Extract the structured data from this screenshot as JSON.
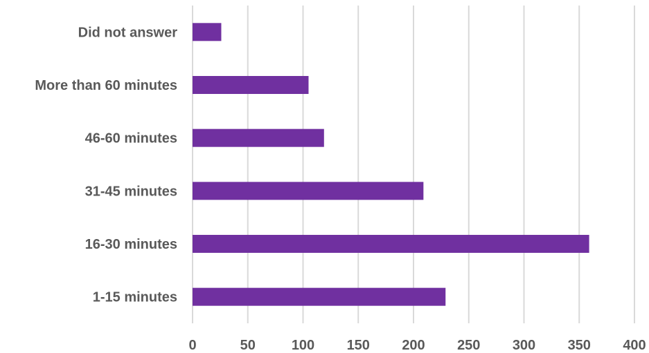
{
  "chart_data": {
    "type": "bar",
    "orientation": "horizontal",
    "categories": [
      "Did not answer",
      "More than 60 minutes",
      "46-60 minutes",
      "31-45 minutes",
      "16-30 minutes",
      "1-15 minutes"
    ],
    "values": [
      26,
      105,
      119,
      209,
      359,
      229
    ],
    "xlim": [
      0,
      400
    ],
    "xticks": [
      "0",
      "50",
      "100",
      "150",
      "200",
      "250",
      "300",
      "350",
      "400"
    ],
    "grid": true,
    "legend": false,
    "colors": {
      "bar": "#7030a0",
      "gridline": "#d9d9d9",
      "text": "#595959"
    }
  }
}
